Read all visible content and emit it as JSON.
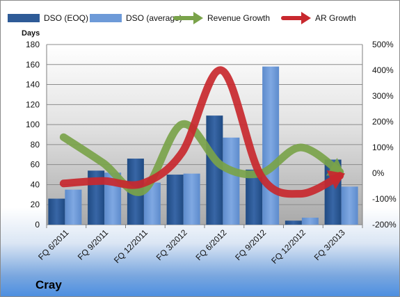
{
  "chart_data": {
    "type": "bar",
    "title": "",
    "company": "Cray",
    "ylabel": "Days",
    "categories": [
      "FQ 6/2011",
      "FQ 9/2011",
      "FQ 12/2011",
      "FQ 3/2012",
      "FQ 6/2012",
      "FQ 9/2012",
      "FQ 12/2012",
      "FQ 3/2013"
    ],
    "ylim": [
      0,
      180
    ],
    "yticks": [
      0,
      20,
      40,
      60,
      80,
      100,
      120,
      140,
      160,
      180
    ],
    "y2lim": [
      -200,
      500
    ],
    "y2ticks": [
      -200,
      -100,
      0,
      100,
      200,
      300,
      400,
      500
    ],
    "y2tick_labels": [
      "-200%",
      "-100%",
      "0%",
      "100%",
      "200%",
      "300%",
      "400%",
      "500%"
    ],
    "grid": true,
    "legend_position": "top",
    "series": [
      {
        "name": "DSO (EOQ)",
        "type": "bar",
        "axis": "left",
        "color": "#2e5b97",
        "values": [
          26,
          54,
          66,
          50,
          109,
          55,
          4,
          65
        ]
      },
      {
        "name": "DSO (average)",
        "type": "bar",
        "axis": "left",
        "color": "#6d9ad8",
        "values": [
          35,
          52,
          42,
          51,
          87,
          158,
          7,
          38
        ]
      },
      {
        "name": "Revenue Growth",
        "type": "line",
        "axis": "right",
        "color": "#7aa34a",
        "values": [
          140,
          40,
          -70,
          190,
          30,
          0,
          100,
          5
        ]
      },
      {
        "name": "AR Growth",
        "type": "line",
        "axis": "right",
        "color": "#c8282e",
        "values": [
          -40,
          -30,
          -40,
          80,
          400,
          -10,
          -80,
          -10
        ]
      }
    ]
  }
}
